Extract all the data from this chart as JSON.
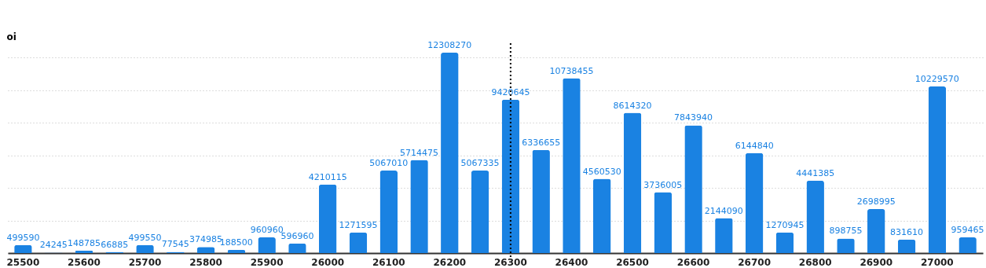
{
  "chart_data": {
    "type": "bar",
    "ylabel": "oi",
    "categories": [
      "25500",
      null,
      "25600",
      null,
      "25700",
      null,
      "25800",
      null,
      "25900",
      null,
      "26000",
      null,
      "26100",
      null,
      "26200",
      null,
      "26300",
      null,
      "26400",
      null,
      "26500",
      null,
      "26600",
      null,
      "26700",
      null,
      "26800",
      null,
      "26900",
      null,
      "27000",
      null
    ],
    "values": [
      499590,
      24245,
      148785,
      66885,
      499550,
      77545,
      374985,
      188500,
      960960,
      596960,
      4210115,
      1271595,
      5067010,
      5714475,
      12308270,
      5067335,
      9420645,
      6336655,
      10738455,
      4560530,
      8614320,
      3736005,
      7843940,
      2144090,
      6144840,
      1270945,
      4441385,
      898755,
      2698995,
      831610,
      10229570,
      959465
    ],
    "color": "#1a82e2",
    "ylim": [
      0,
      12308270
    ],
    "grid": "y",
    "tick_labels": "x",
    "data_labels": true,
    "ref_lines": [
      {
        "axis": "x",
        "value": "26300",
        "line_style": "dotted",
        "color": "#000000"
      }
    ]
  }
}
